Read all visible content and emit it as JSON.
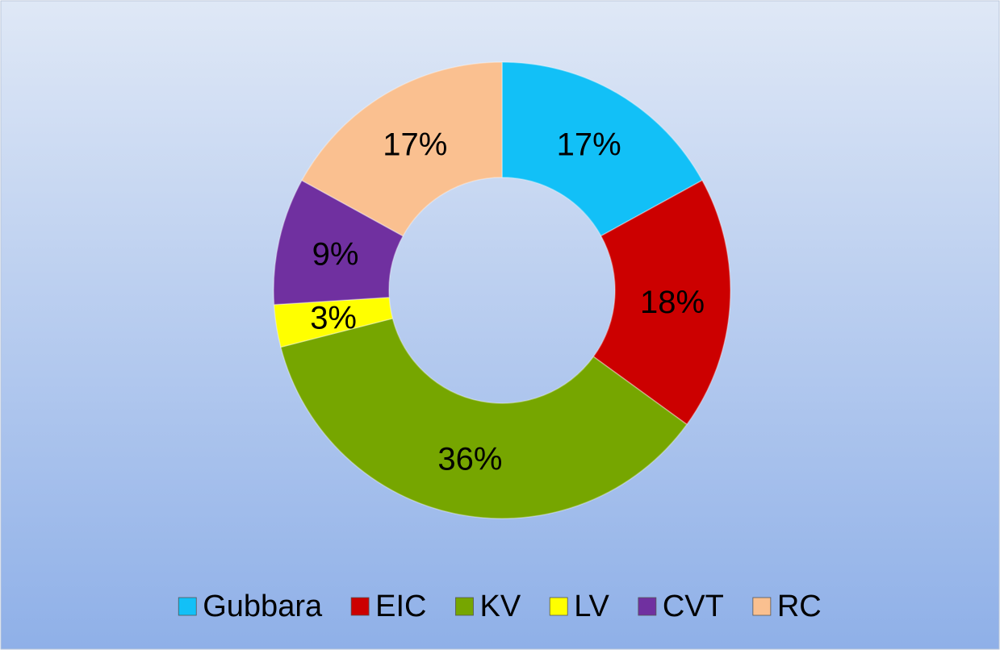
{
  "chart_data": {
    "type": "donut",
    "categories": [
      "Gubbara",
      "EIC",
      "KV",
      "LV",
      "CVT",
      "RC"
    ],
    "values": [
      17,
      18,
      36,
      3,
      9,
      17
    ],
    "value_labels": [
      "17%",
      "18%",
      "36%",
      "3%",
      "9%",
      "17%"
    ],
    "colors": [
      "#12c0f7",
      "#cc0000",
      "#76a600",
      "#ffff00",
      "#7030a0",
      "#fac090"
    ],
    "legend": "bottom"
  }
}
